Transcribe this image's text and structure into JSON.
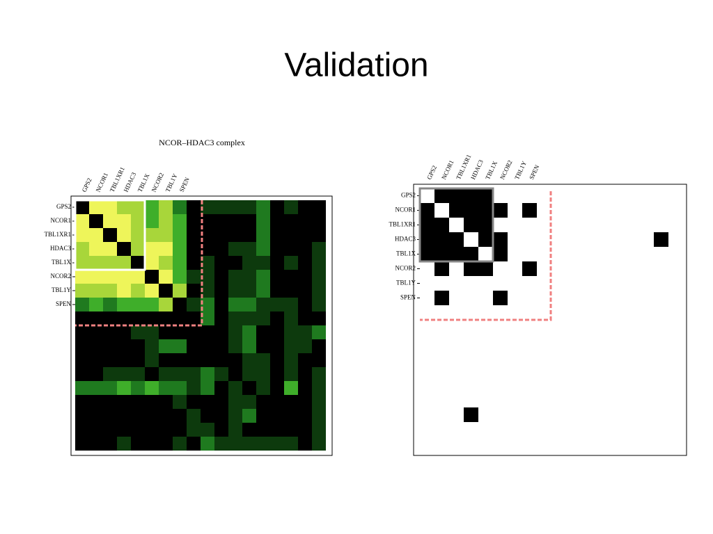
{
  "title": "Validation",
  "left_panel": {
    "title": "NCOR–HDAC3 complex",
    "labels": [
      "GPS2",
      "NCOR1",
      "TBL1XR1",
      "HDAC3",
      "TBL1X",
      "NCOR2",
      "TBL1Y",
      "SPEN"
    ],
    "palette": [
      "#000000",
      "#0d3a0d",
      "#1f7a1f",
      "#3fae2a",
      "#a8d63a",
      "#eef55a"
    ],
    "cells": [
      [
        0,
        5,
        5,
        4,
        4,
        3,
        4,
        2,
        0,
        1,
        1,
        1,
        1,
        2,
        0,
        1,
        0,
        0
      ],
      [
        5,
        0,
        5,
        5,
        4,
        3,
        4,
        3,
        0,
        0,
        0,
        0,
        0,
        2,
        0,
        0,
        0,
        0
      ],
      [
        5,
        5,
        0,
        5,
        4,
        4,
        4,
        3,
        0,
        0,
        0,
        0,
        0,
        2,
        0,
        0,
        0,
        0
      ],
      [
        4,
        5,
        5,
        0,
        4,
        5,
        5,
        3,
        0,
        0,
        0,
        1,
        1,
        2,
        0,
        0,
        0,
        1
      ],
      [
        4,
        4,
        4,
        4,
        0,
        5,
        4,
        3,
        0,
        1,
        0,
        0,
        1,
        1,
        0,
        1,
        0,
        1
      ],
      [
        5,
        5,
        5,
        5,
        5,
        0,
        5,
        3,
        1,
        1,
        0,
        1,
        1,
        2,
        0,
        0,
        0,
        1
      ],
      [
        4,
        4,
        4,
        5,
        4,
        5,
        0,
        4,
        0,
        1,
        0,
        1,
        1,
        2,
        0,
        0,
        0,
        1
      ],
      [
        2,
        3,
        2,
        3,
        3,
        3,
        4,
        0,
        1,
        2,
        0,
        2,
        2,
        1,
        1,
        1,
        0,
        1
      ],
      [
        0,
        0,
        0,
        0,
        0,
        0,
        0,
        0,
        0,
        2,
        0,
        1,
        1,
        1,
        0,
        1,
        0,
        0
      ],
      [
        0,
        0,
        0,
        0,
        1,
        1,
        0,
        0,
        0,
        0,
        0,
        1,
        2,
        0,
        0,
        1,
        1,
        2
      ],
      [
        0,
        0,
        0,
        0,
        0,
        1,
        2,
        2,
        0,
        0,
        0,
        1,
        2,
        0,
        0,
        1,
        1,
        0
      ],
      [
        0,
        0,
        0,
        0,
        0,
        1,
        0,
        0,
        0,
        0,
        0,
        0,
        1,
        1,
        0,
        1,
        0,
        0
      ],
      [
        0,
        0,
        1,
        1,
        1,
        0,
        1,
        1,
        1,
        2,
        1,
        0,
        1,
        1,
        0,
        1,
        0,
        1
      ],
      [
        2,
        2,
        2,
        3,
        2,
        3,
        2,
        2,
        1,
        2,
        0,
        1,
        0,
        1,
        0,
        3,
        0,
        1
      ],
      [
        0,
        0,
        0,
        0,
        0,
        0,
        0,
        1,
        0,
        0,
        0,
        1,
        1,
        0,
        0,
        0,
        0,
        1
      ],
      [
        0,
        0,
        0,
        0,
        0,
        0,
        0,
        0,
        1,
        0,
        0,
        1,
        2,
        0,
        0,
        0,
        0,
        1
      ],
      [
        0,
        0,
        0,
        0,
        0,
        0,
        0,
        0,
        1,
        1,
        0,
        1,
        0,
        0,
        0,
        0,
        0,
        1
      ],
      [
        0,
        0,
        0,
        1,
        0,
        0,
        0,
        1,
        0,
        2,
        1,
        1,
        1,
        1,
        1,
        1,
        0,
        1
      ]
    ]
  },
  "right_panel": {
    "labels": [
      "GPS2",
      "NCOR1",
      "TBL1XR1",
      "HDAC3",
      "TBL1X",
      "NCOR2",
      "TBL1Y",
      "SPEN"
    ],
    "black_cells": [
      [
        0,
        1
      ],
      [
        0,
        2
      ],
      [
        0,
        3
      ],
      [
        0,
        4
      ],
      [
        1,
        0
      ],
      [
        1,
        2
      ],
      [
        1,
        3
      ],
      [
        1,
        4
      ],
      [
        1,
        5
      ],
      [
        1,
        7
      ],
      [
        2,
        0
      ],
      [
        2,
        1
      ],
      [
        2,
        3
      ],
      [
        2,
        4
      ],
      [
        3,
        0
      ],
      [
        3,
        1
      ],
      [
        3,
        2
      ],
      [
        3,
        4
      ],
      [
        3,
        5
      ],
      [
        3,
        16
      ],
      [
        4,
        0
      ],
      [
        4,
        1
      ],
      [
        4,
        2
      ],
      [
        4,
        3
      ],
      [
        4,
        5
      ],
      [
        5,
        1
      ],
      [
        5,
        3
      ],
      [
        5,
        4
      ],
      [
        5,
        7
      ],
      [
        7,
        1
      ],
      [
        7,
        5
      ],
      [
        15,
        3
      ]
    ]
  }
}
